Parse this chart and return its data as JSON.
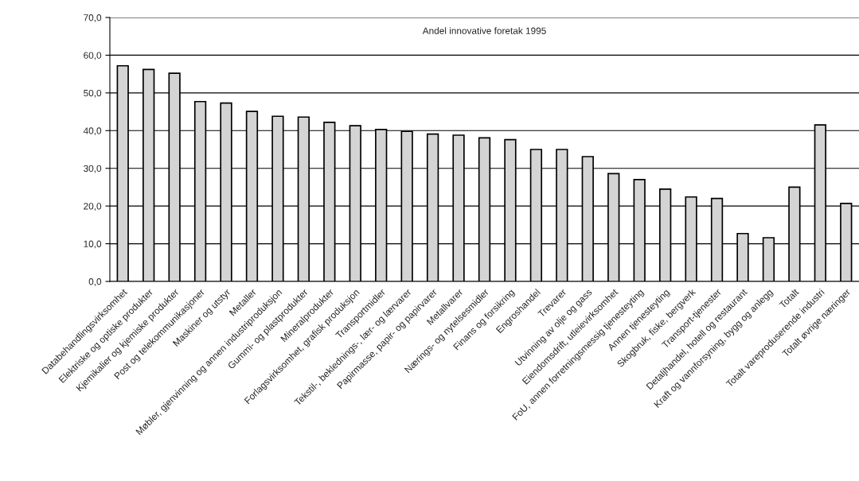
{
  "chart_data": {
    "type": "bar",
    "title": "Andel innovative foretak 1995",
    "categories": [
      "Databehandlingsvirksomhet",
      "Elektriske og optiske produkter",
      "Kjemikalier og kjemiske produkter",
      "Post og telekommunikasjoner",
      "Maskiner og utstyr",
      "Metaller",
      "Møbler, gjenvinning og annen industriproduksjon",
      "Gummi- og plastprodukter",
      "Mineralprodukter",
      "Forlagsvirksomhet, grafisk produksjon",
      "Transportmidler",
      "Tekstil-, beklednings-, lær- og lærvarer",
      "Papirmasse, papir- og papirvarer",
      "Metallvarer",
      "Nærings- og nytelsesmidler",
      "Finans og forsikring",
      "Engroshandel",
      "Trevarer",
      "Utvinning av olje og gass",
      "Eiendomsdrift, utleievirksomhet",
      "FoU, annen forretningsmessig tjenesteyting",
      "Annen tjenesteyting",
      "Skogbruk, fiske, bergverk",
      "Transport-tjenester",
      "Detaljhandel, hotell og restaurant",
      "Kraft og vannforsyning, bygg og anlegg",
      "Totalt",
      "Totalt vareproduserende industri",
      "Totalt øvrige næringer"
    ],
    "values": [
      57.2,
      56.2,
      55.2,
      47.7,
      47.3,
      45.1,
      43.8,
      43.6,
      42.2,
      41.3,
      40.3,
      39.8,
      39.1,
      38.8,
      38.1,
      37.6,
      35.0,
      35.0,
      33.1,
      28.6,
      27.0,
      24.5,
      22.4,
      22.0,
      12.7,
      11.6,
      25.0,
      41.5,
      20.7
    ],
    "color": "#d4d4d4",
    "ylim": [
      0,
      70
    ],
    "yticks": [
      {
        "value": 0,
        "label": "0,0"
      },
      {
        "value": 10,
        "label": "10,0"
      },
      {
        "value": 20,
        "label": "20,0"
      },
      {
        "value": 30,
        "label": "30,0"
      },
      {
        "value": 40,
        "label": "40,0"
      },
      {
        "value": 50,
        "label": "50,0"
      },
      {
        "value": 60,
        "label": "60,0"
      },
      {
        "value": 70,
        "label": "70,0"
      }
    ],
    "grid": "y"
  }
}
